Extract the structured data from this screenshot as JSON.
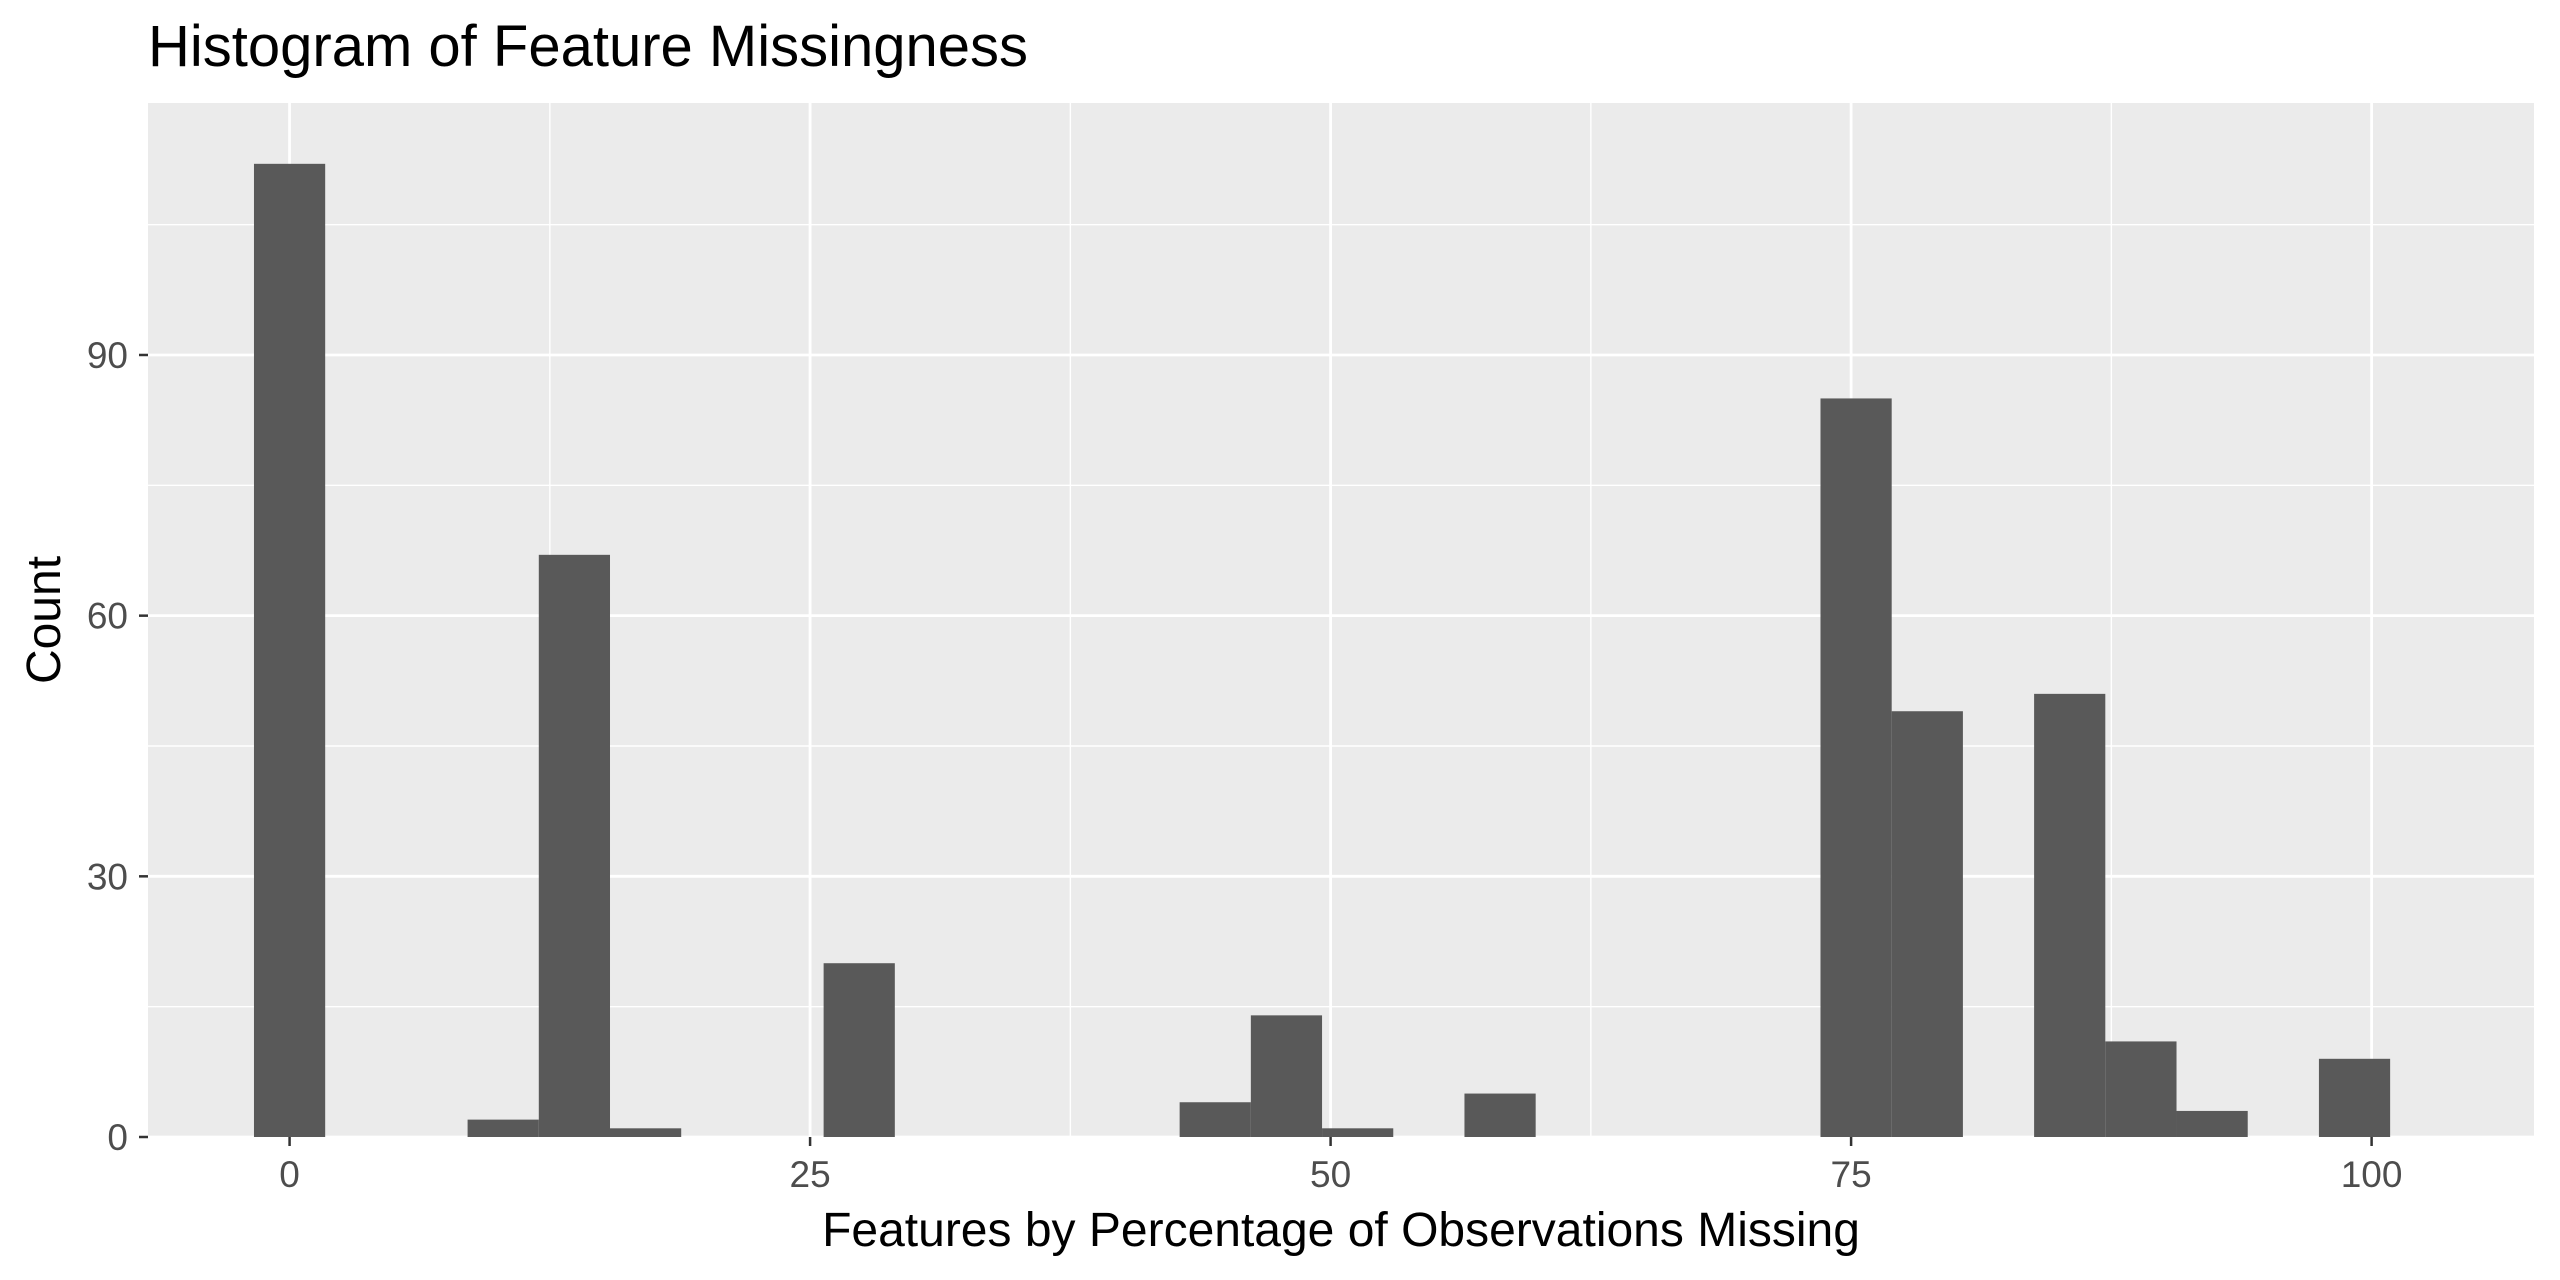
{
  "chart_data": {
    "type": "bar",
    "title": "Histogram of Feature Missingness",
    "xlabel": "Features by Percentage of Observations Missing",
    "ylabel": "Count",
    "xlim": [
      -6.8,
      107.8
    ],
    "ylim": [
      0,
      119
    ],
    "x_ticks": [
      0,
      25,
      50,
      75,
      100
    ],
    "x_tick_labels": [
      "0",
      "25",
      "50",
      "75",
      "100"
    ],
    "y_ticks": [
      0,
      30,
      60,
      90
    ],
    "y_tick_labels": [
      "0",
      "30",
      "60",
      "90"
    ],
    "bin_width": 3.42,
    "bins": [
      {
        "x": 0.0,
        "count": 112
      },
      {
        "x": 10.26,
        "count": 2
      },
      {
        "x": 13.68,
        "count": 67
      },
      {
        "x": 17.1,
        "count": 1
      },
      {
        "x": 27.36,
        "count": 20
      },
      {
        "x": 44.46,
        "count": 4
      },
      {
        "x": 47.88,
        "count": 14
      },
      {
        "x": 51.3,
        "count": 1
      },
      {
        "x": 58.14,
        "count": 5
      },
      {
        "x": 75.24,
        "count": 85
      },
      {
        "x": 78.66,
        "count": 49
      },
      {
        "x": 85.5,
        "count": 51
      },
      {
        "x": 88.92,
        "count": 11
      },
      {
        "x": 92.34,
        "count": 3
      },
      {
        "x": 99.18,
        "count": 9
      }
    ],
    "grid": true,
    "colors": {
      "panel": "#ebebeb",
      "grid_major": "#ffffff",
      "bar": "#595959",
      "tick": "#333333",
      "tick_label": "#4d4d4d"
    }
  }
}
